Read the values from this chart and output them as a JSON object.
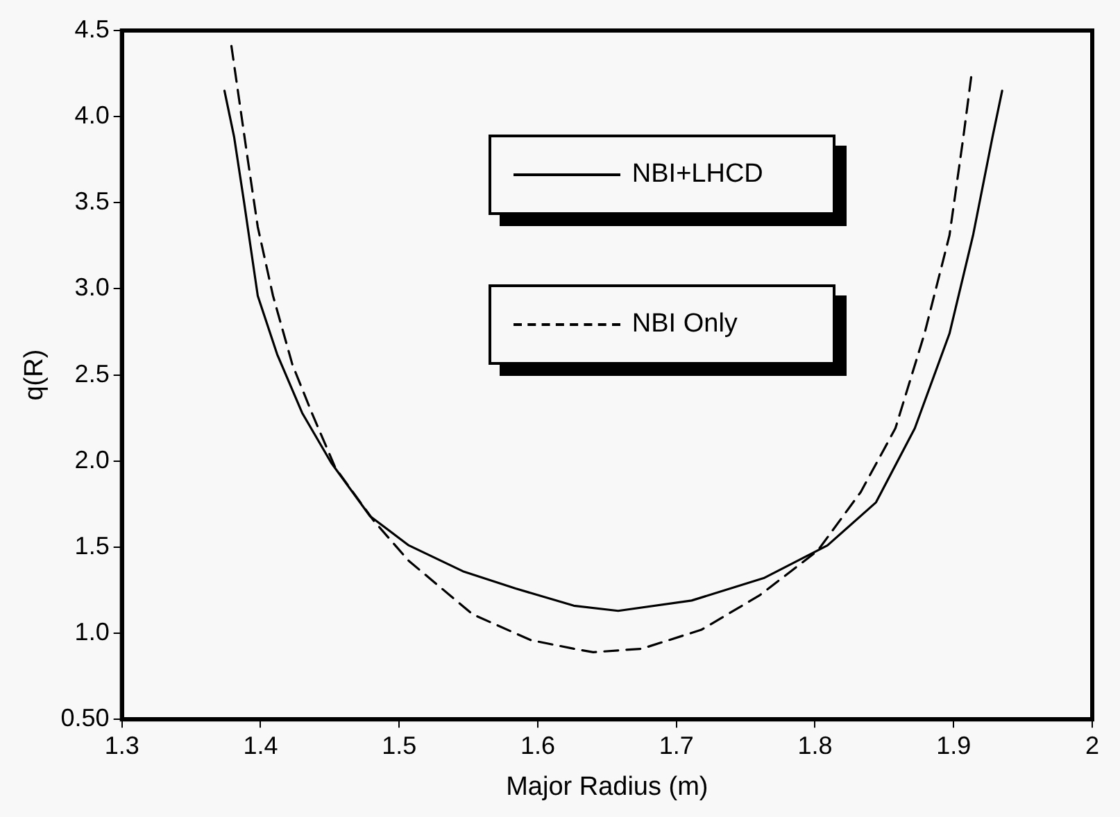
{
  "chart_data": {
    "type": "line",
    "xlabel": "Major Radius (m)",
    "ylabel": "q(R)",
    "xlim": [
      1.3,
      2
    ],
    "xticks": [
      1.3,
      1.4,
      1.5,
      1.6,
      1.7,
      1.8,
      1.9,
      {
        "value": 2,
        "label": "2"
      }
    ],
    "ylim": [
      0.5,
      4.5
    ],
    "yticks": [
      {
        "value": 0.5,
        "label": "0.50"
      },
      {
        "value": 1,
        "label": "1.0"
      },
      1.5,
      {
        "value": 2,
        "label": "2.0"
      },
      2.5,
      {
        "value": 3,
        "label": "3.0"
      },
      3.5,
      {
        "value": 4,
        "label": "4.0"
      },
      4.5
    ],
    "grid": false,
    "legend": "top",
    "marker": "none",
    "series": [
      {
        "name": "NBI+LHCD",
        "color": "#000000",
        "line_style": "solid",
        "x": [
          1.374,
          1.381,
          1.388,
          1.398,
          1.412,
          1.43,
          1.451,
          1.479,
          1.507,
          1.546,
          1.584,
          1.626,
          1.658,
          1.711,
          1.763,
          1.809,
          1.844,
          1.872,
          1.897,
          1.914,
          1.928,
          1.935
        ],
        "values": [
          4.15,
          3.88,
          3.51,
          2.96,
          2.62,
          2.28,
          1.99,
          1.68,
          1.51,
          1.36,
          1.26,
          1.16,
          1.13,
          1.19,
          1.32,
          1.51,
          1.76,
          2.19,
          2.74,
          3.31,
          3.88,
          4.15
        ]
      },
      {
        "name": "NBI Only",
        "color": "#000000",
        "line_style": "dashed",
        "x": [
          1.379,
          1.391,
          1.398,
          1.409,
          1.423,
          1.437,
          1.454,
          1.482,
          1.507,
          1.553,
          1.595,
          1.626,
          1.64,
          1.675,
          1.718,
          1.76,
          1.802,
          1.833,
          1.858,
          1.879,
          1.897,
          1.907,
          1.913
        ],
        "values": [
          4.41,
          3.74,
          3.36,
          2.96,
          2.56,
          2.28,
          1.96,
          1.65,
          1.42,
          1.11,
          0.96,
          0.91,
          0.89,
          0.91,
          1.02,
          1.22,
          1.48,
          1.82,
          2.19,
          2.74,
          3.31,
          3.88,
          4.25
        ]
      }
    ]
  }
}
